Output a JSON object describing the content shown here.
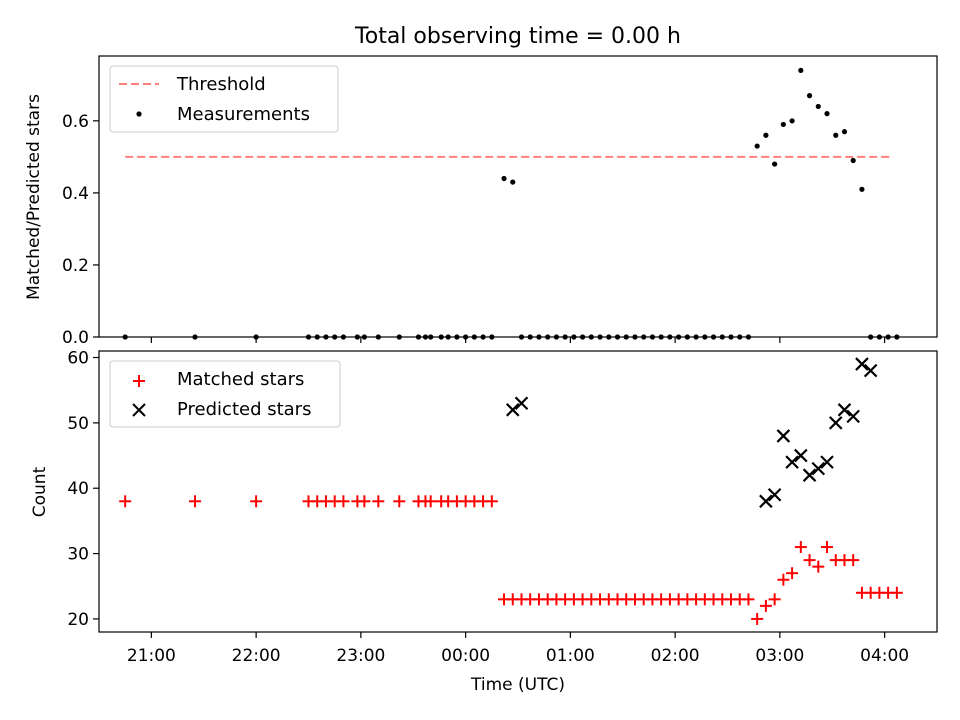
{
  "chart_data": [
    {
      "type": "scatter",
      "title": "Total observing time = 0.00 h",
      "xlabel": "",
      "ylabel": "Matched/Predicted stars",
      "ylim": [
        0,
        0.78
      ],
      "xlim": [
        "20:30",
        "04:30"
      ],
      "yticks": [
        "0.0",
        "0.2",
        "0.4",
        "0.6"
      ],
      "legend_position": "upper-left",
      "threshold": {
        "name": "Threshold",
        "value": 0.5,
        "x_from": "20:45",
        "x_to": "04:05",
        "color": "#ff7f7f"
      },
      "series": [
        {
          "name": "Measurements",
          "color": "#000000",
          "marker": "dot",
          "x": [
            "20:45",
            "21:25",
            "22:00",
            "22:30",
            "22:35",
            "22:40",
            "22:45",
            "22:50",
            "22:58",
            "23:02",
            "23:10",
            "23:22",
            "23:33",
            "23:37",
            "23:40",
            "23:46",
            "23:50",
            "23:55",
            "24:00",
            "24:05",
            "24:10",
            "24:15",
            "24:22",
            "24:27",
            "24:32",
            "24:37",
            "24:42",
            "24:47",
            "24:52",
            "24:57",
            "25:02",
            "25:07",
            "25:12",
            "25:17",
            "25:22",
            "25:27",
            "25:32",
            "25:37",
            "25:42",
            "25:47",
            "25:52",
            "25:57",
            "26:02",
            "26:07",
            "26:12",
            "26:17",
            "26:22",
            "26:27",
            "26:32",
            "26:37",
            "26:42",
            "26:47",
            "26:52",
            "26:57",
            "27:02",
            "27:07",
            "27:12",
            "27:17",
            "27:22",
            "27:27",
            "27:32",
            "27:37",
            "27:42",
            "27:47",
            "27:52",
            "27:57",
            "28:02",
            "28:07"
          ],
          "y": [
            0,
            0,
            0,
            0,
            0,
            0,
            0,
            0,
            0,
            0,
            0,
            0,
            0,
            0,
            0,
            0,
            0,
            0,
            0,
            0,
            0,
            0,
            0.44,
            0.43,
            0,
            0,
            0,
            0,
            0,
            0,
            0,
            0,
            0,
            0,
            0,
            0,
            0,
            0,
            0,
            0,
            0,
            0,
            0,
            0,
            0,
            0,
            0,
            0,
            0,
            0,
            0,
            0.53,
            0.56,
            0.48,
            0.59,
            0.6,
            0.74,
            0.67,
            0.64,
            0.62,
            0.56,
            0.57,
            0.49,
            0.41,
            0,
            0,
            0,
            0
          ]
        }
      ]
    },
    {
      "type": "scatter",
      "title": "",
      "xlabel": "Time (UTC)",
      "ylabel": "Count",
      "ylim": [
        18,
        61
      ],
      "xlim": [
        "20:30",
        "04:30"
      ],
      "yticks": [
        "20",
        "30",
        "40",
        "50",
        "60"
      ],
      "xticks": [
        "21:00",
        "22:00",
        "23:00",
        "00:00",
        "01:00",
        "02:00",
        "03:00",
        "04:00"
      ],
      "legend_position": "upper-left",
      "series": [
        {
          "name": "Matched stars",
          "color": "#ff0000",
          "marker": "plus",
          "x": [
            "20:45",
            "21:25",
            "22:00",
            "22:30",
            "22:35",
            "22:40",
            "22:45",
            "22:50",
            "22:58",
            "23:02",
            "23:10",
            "23:22",
            "23:33",
            "23:37",
            "23:40",
            "23:46",
            "23:50",
            "23:55",
            "24:00",
            "24:05",
            "24:10",
            "24:15",
            "24:22",
            "24:27",
            "24:32",
            "24:37",
            "24:42",
            "24:47",
            "24:52",
            "24:57",
            "25:02",
            "25:07",
            "25:12",
            "25:17",
            "25:22",
            "25:27",
            "25:32",
            "25:37",
            "25:42",
            "25:47",
            "25:52",
            "25:57",
            "26:02",
            "26:07",
            "26:12",
            "26:17",
            "26:22",
            "26:27",
            "26:32",
            "26:37",
            "26:42",
            "26:47",
            "26:52",
            "26:57",
            "27:02",
            "27:07",
            "27:12",
            "27:17",
            "27:22",
            "27:27",
            "27:32",
            "27:37",
            "27:42",
            "27:47",
            "27:52",
            "27:57",
            "28:02",
            "28:07"
          ],
          "y": [
            38,
            38,
            38,
            38,
            38,
            38,
            38,
            38,
            38,
            38,
            38,
            38,
            38,
            38,
            38,
            38,
            38,
            38,
            38,
            38,
            38,
            38,
            23,
            23,
            23,
            23,
            23,
            23,
            23,
            23,
            23,
            23,
            23,
            23,
            23,
            23,
            23,
            23,
            23,
            23,
            23,
            23,
            23,
            23,
            23,
            23,
            23,
            23,
            23,
            23,
            23,
            20,
            22,
            23,
            26,
            27,
            31,
            29,
            28,
            31,
            29,
            29,
            29,
            24,
            24,
            24,
            24,
            24
          ]
        },
        {
          "name": "Predicted stars",
          "color": "#000000",
          "marker": "x",
          "x": [
            "24:27",
            "24:32",
            "26:52",
            "26:57",
            "27:02",
            "27:07",
            "27:12",
            "27:17",
            "27:22",
            "27:27",
            "27:32",
            "27:37",
            "27:42",
            "27:47",
            "27:52"
          ],
          "y": [
            52,
            53,
            38,
            39,
            48,
            44,
            45,
            42,
            43,
            44,
            50,
            52,
            51,
            59,
            58
          ]
        }
      ]
    }
  ]
}
